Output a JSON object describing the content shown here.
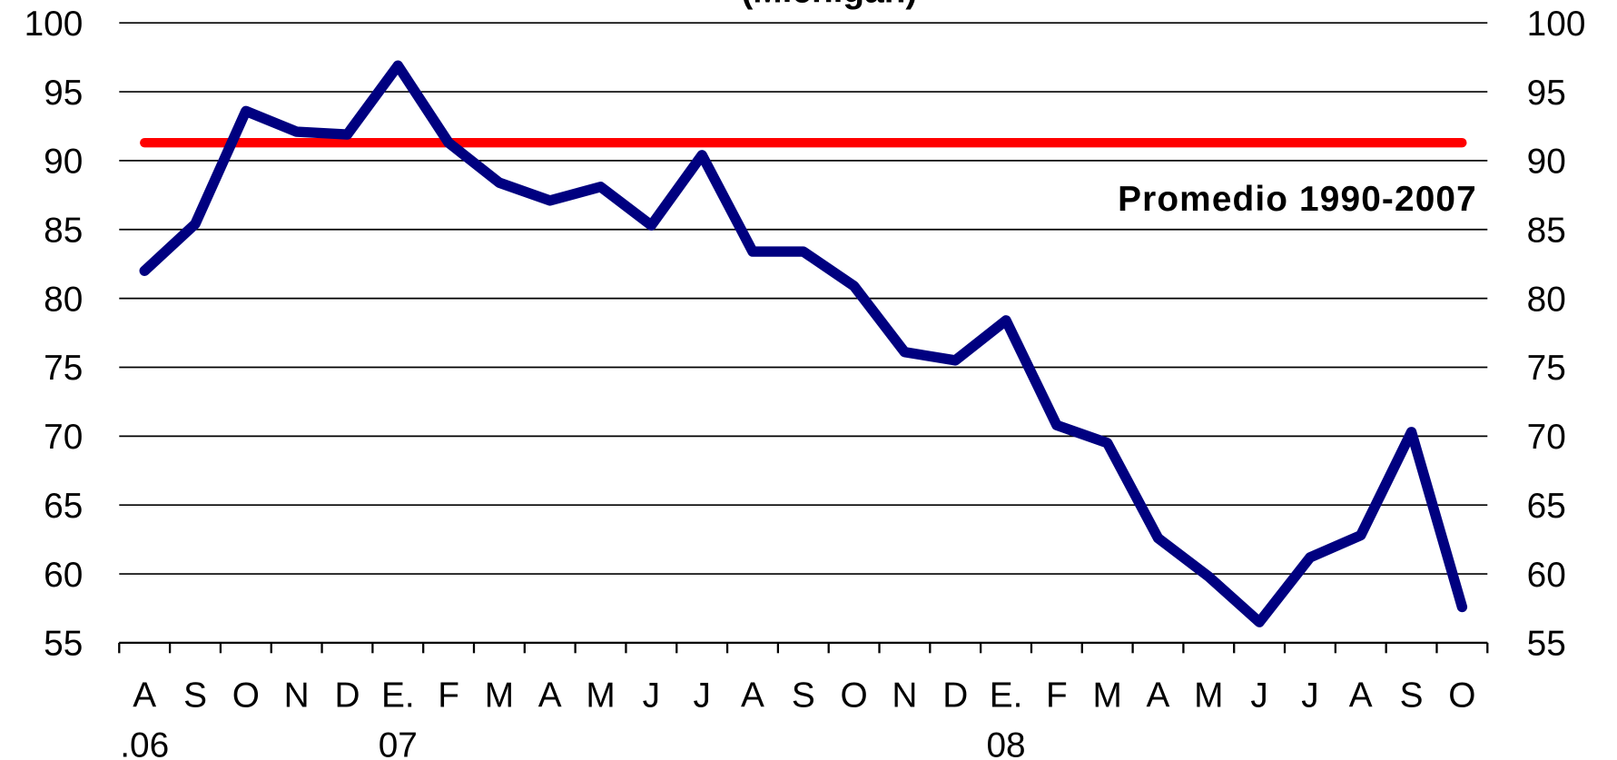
{
  "chart_data": {
    "type": "line",
    "title": "(Michigan)",
    "categories": [
      "A",
      "S",
      "O",
      "N",
      "D",
      "E.",
      "F",
      "M",
      "A",
      "M",
      "J",
      "J",
      "A",
      "S",
      "O",
      "N",
      "D",
      "E.",
      "F",
      "M",
      "A",
      "M",
      "J",
      "J",
      "A",
      "S",
      "O"
    ],
    "category_sublabels": [
      ".06",
      null,
      null,
      null,
      null,
      "07",
      null,
      null,
      null,
      null,
      null,
      null,
      null,
      null,
      null,
      null,
      null,
      "08",
      null,
      null,
      null,
      null,
      null,
      null,
      null,
      null,
      null
    ],
    "series": [
      {
        "name": null,
        "color": "#000080",
        "values": [
          82,
          85.4,
          93.6,
          92.1,
          91.9,
          96.9,
          91.3,
          88.4,
          87.1,
          88.1,
          85.3,
          90.4,
          83.4,
          83.4,
          80.9,
          76.1,
          75.5,
          78.4,
          70.8,
          69.5,
          62.6,
          59.8,
          56.5,
          61.2,
          62.8,
          70.3,
          57.6
        ]
      }
    ],
    "reference_line": {
      "name": "Promedio 1990-2007",
      "value": 91.3,
      "color": "#ff0000"
    },
    "ylim": [
      55,
      100
    ],
    "yticks": [
      55,
      60,
      65,
      70,
      75,
      80,
      85,
      90,
      95,
      100
    ],
    "y2lim": [
      55,
      100
    ],
    "y2ticks": [
      55,
      60,
      65,
      70,
      75,
      80,
      85,
      90,
      95,
      100
    ],
    "grid": true
  }
}
